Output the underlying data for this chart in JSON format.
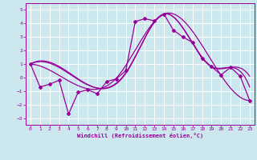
{
  "xlabel": "Windchill (Refroidissement éolien,°C)",
  "background_color": "#cce8ee",
  "line_color": "#990099",
  "grid_color": "#aacccc",
  "xlim": [
    -0.5,
    23.5
  ],
  "ylim": [
    -3.5,
    5.5
  ],
  "yticks": [
    -3,
    -2,
    -1,
    0,
    1,
    2,
    3,
    4,
    5
  ],
  "xticks": [
    0,
    1,
    2,
    3,
    4,
    5,
    6,
    7,
    8,
    9,
    10,
    11,
    12,
    13,
    14,
    15,
    16,
    17,
    18,
    19,
    20,
    21,
    22,
    23
  ],
  "main_x": [
    0,
    1,
    2,
    3,
    4,
    5,
    6,
    7,
    8,
    9,
    10,
    11,
    12,
    13,
    14,
    15,
    16,
    17,
    18,
    19,
    20,
    21,
    22,
    23
  ],
  "main_y": [
    1.0,
    -0.7,
    -0.5,
    -0.2,
    -2.7,
    -1.1,
    -0.9,
    -1.2,
    -0.3,
    -0.1,
    0.5,
    4.15,
    4.35,
    4.2,
    4.7,
    3.5,
    3.0,
    2.6,
    1.4,
    0.8,
    0.2,
    0.75,
    0.1,
    -1.7
  ],
  "smooth1_x": [
    0,
    5,
    10,
    14,
    19,
    21,
    23
  ],
  "smooth1_y": [
    1.0,
    -0.3,
    0.4,
    4.7,
    0.8,
    0.75,
    -1.7
  ],
  "smooth2_x": [
    0,
    5,
    10,
    14,
    18,
    21,
    23
  ],
  "smooth2_y": [
    1.0,
    -0.2,
    0.3,
    4.7,
    1.4,
    0.75,
    0.1
  ],
  "smooth3_x": [
    0,
    5,
    10,
    14,
    18,
    21,
    23
  ],
  "smooth3_y": [
    1.0,
    -0.15,
    0.3,
    4.7,
    1.4,
    0.75,
    -0.7
  ]
}
